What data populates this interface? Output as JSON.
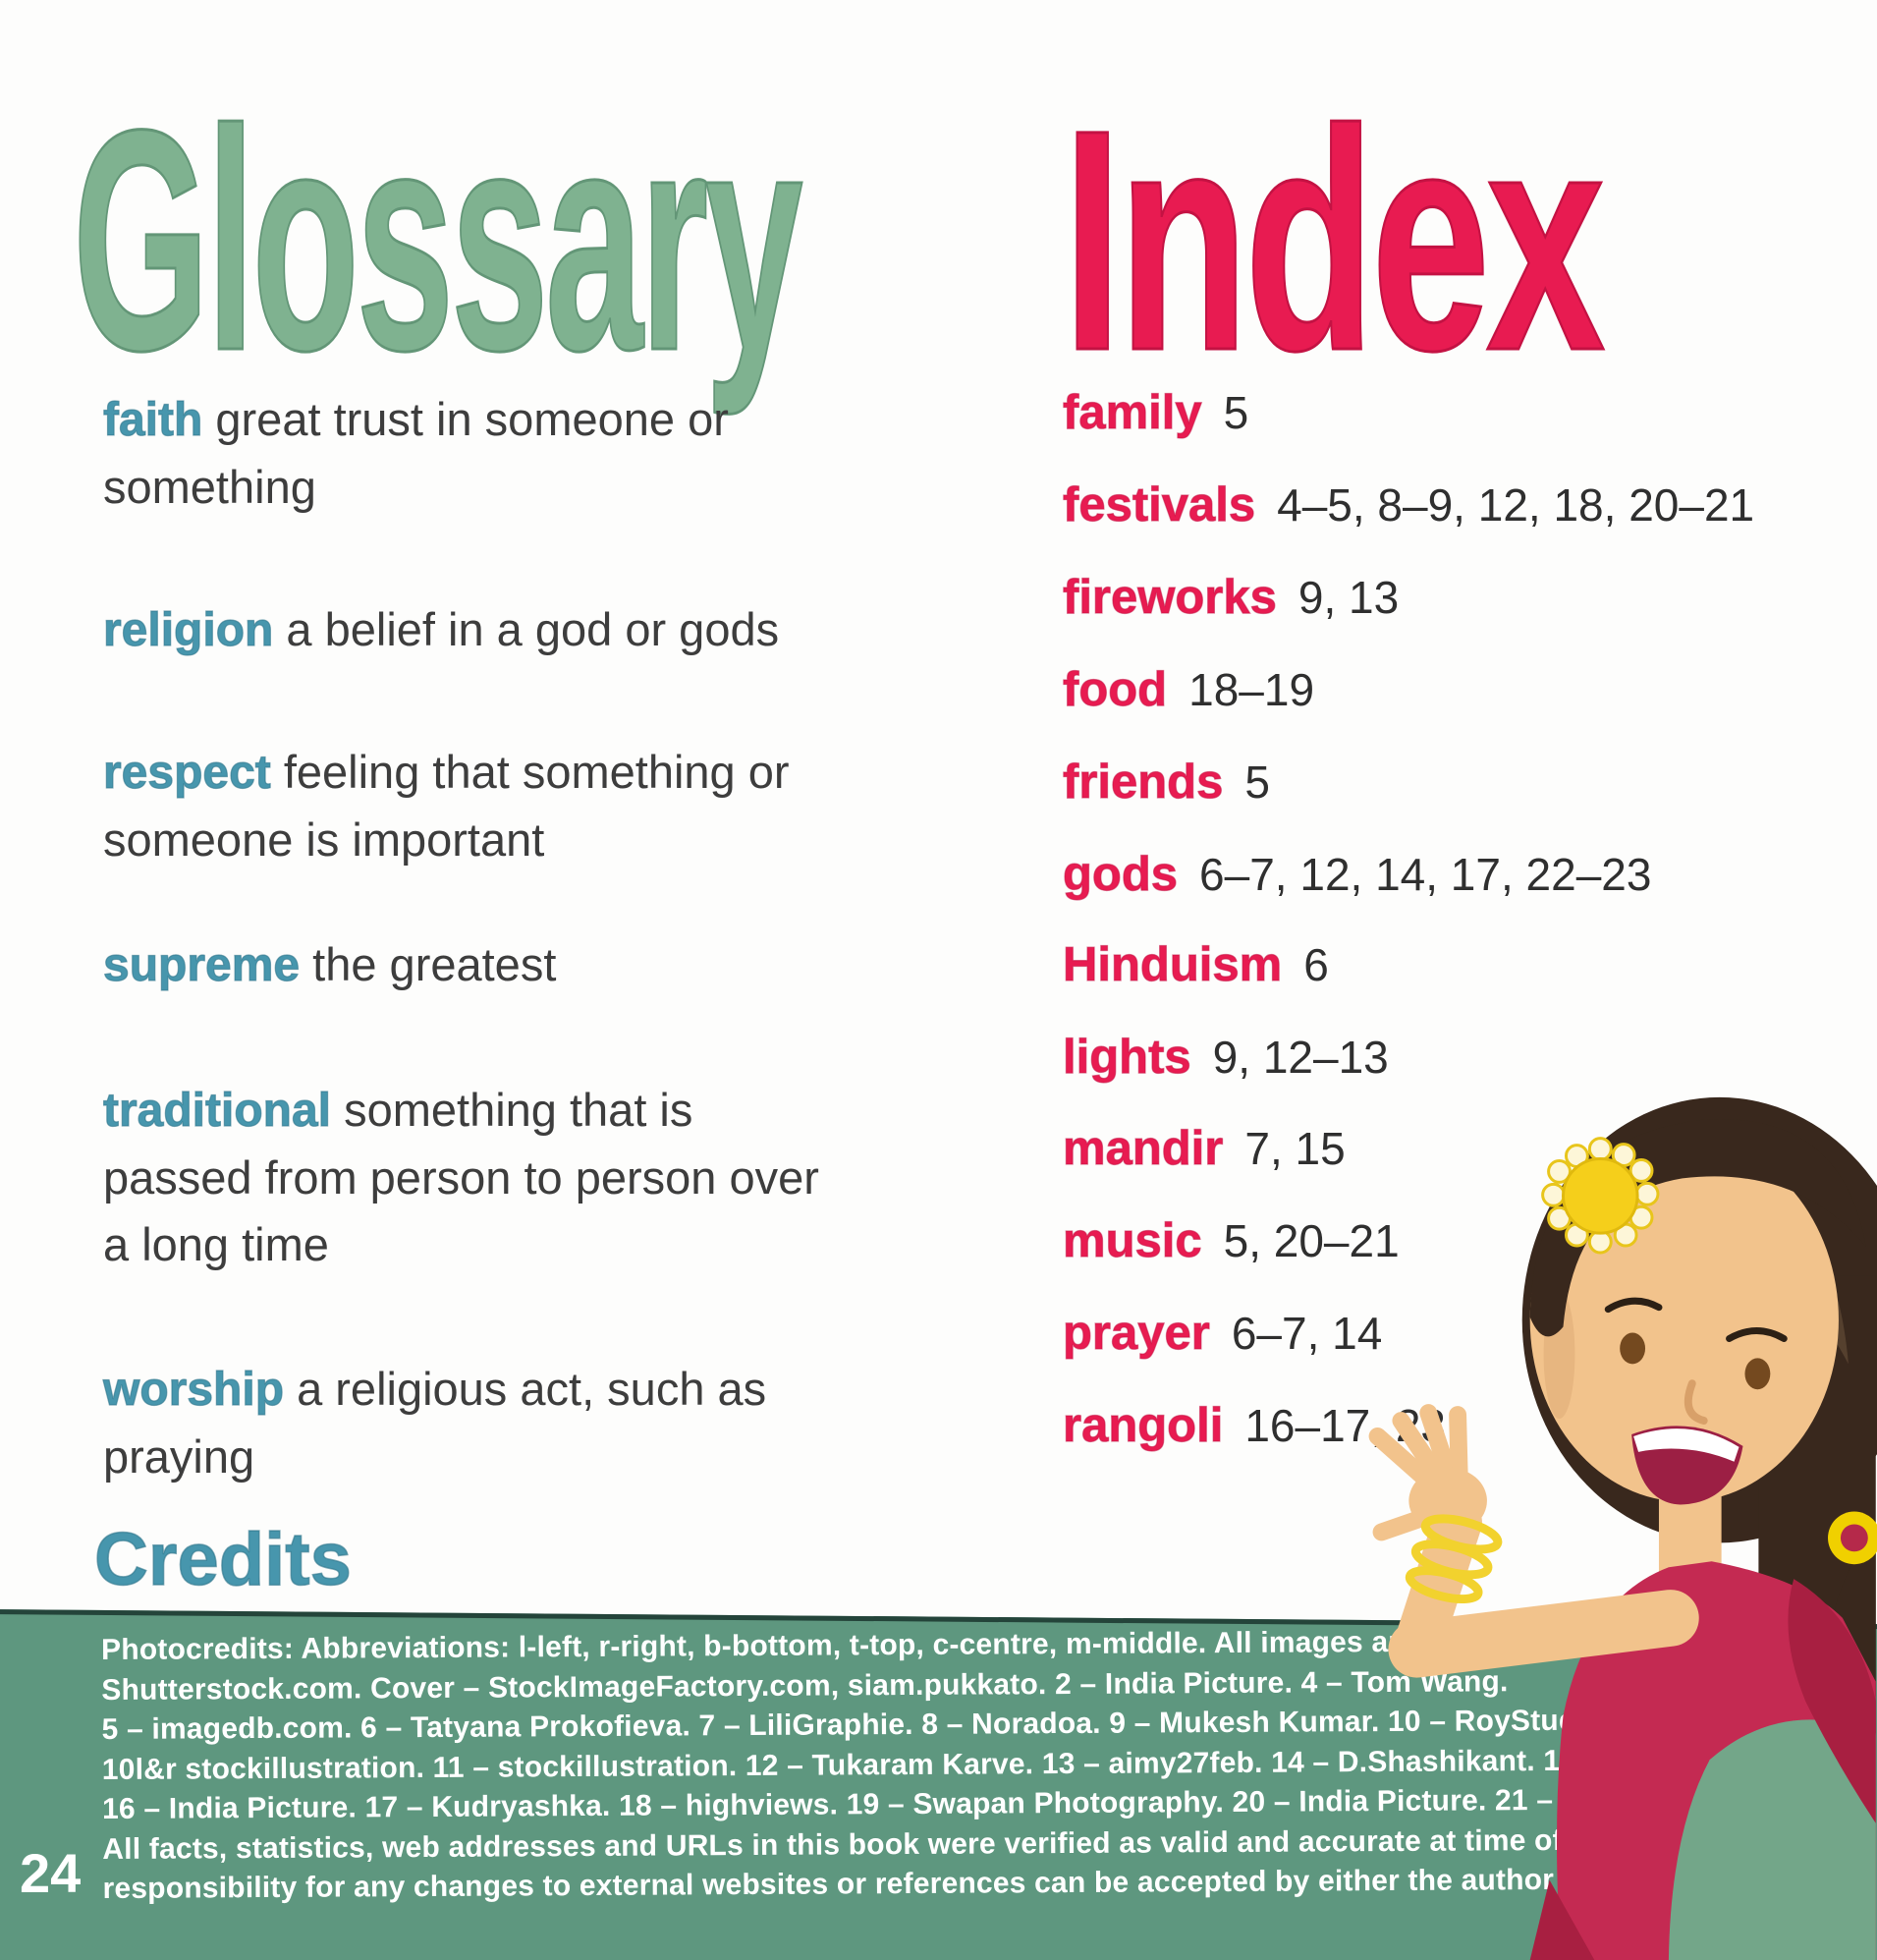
{
  "page": {
    "glossary_title": "Glossary",
    "index_title": "Index",
    "credits_title": "Credits",
    "page_number": "24"
  },
  "glossary": {
    "entries": [
      {
        "term": "faith",
        "definition": "great trust in someone or something"
      },
      {
        "term": "religion",
        "definition": "a belief in a god or gods"
      },
      {
        "term": "respect",
        "definition": "feeling that something or someone is important"
      },
      {
        "term": "supreme",
        "definition": "the greatest"
      },
      {
        "term": "traditional",
        "definition": "something that is passed from person to person over a long time"
      },
      {
        "term": "worship",
        "definition": "a religious act, such as praying"
      }
    ]
  },
  "index": {
    "entries": [
      {
        "term": "family",
        "pages": "5"
      },
      {
        "term": "festivals",
        "pages": "4–5, 8–9, 12, 18, 20–21"
      },
      {
        "term": "fireworks",
        "pages": "9, 13"
      },
      {
        "term": "food",
        "pages": "18–19"
      },
      {
        "term": "friends",
        "pages": "5"
      },
      {
        "term": "gods",
        "pages": "6–7, 12, 14, 17, 22–23"
      },
      {
        "term": "Hinduism",
        "pages": "6"
      },
      {
        "term": "lights",
        "pages": "9, 12–13"
      },
      {
        "term": "mandir",
        "pages": "7, 15"
      },
      {
        "term": "music",
        "pages": "5, 20–21"
      },
      {
        "term": "prayer",
        "pages": "6–7, 14"
      },
      {
        "term": "rangoli",
        "pages": "16–17, 23"
      }
    ]
  },
  "credits": {
    "lines": [
      "Photocredits: Abbreviations: l-left, r-right, b-bottom, t-top, c-centre, m-middle. All images are courtesy of",
      "Shutterstock.com. Cover – StockImageFactory.com, siam.pukkato. 2 – India Picture. 4 – Tom Wang.",
      "5 – imagedb.com. 6 – Tatyana Prokofieva. 7 – LiliGraphie. 8 – Noradoa. 9 – Mukesh Kumar. 10 – RoyStudio.eu.",
      "10l&r stockillustration. 11 – stockillustration. 12 – Tukaram Karve. 13 – aimy27feb. 14 – D.Shashikant. 15 – saiko3p.",
      "16 – India Picture. 17 – Kudryashka. 18 – highviews. 19 – Swapan Photography. 20 – India Picture. 21 – imagedb.com.",
      "All facts, statistics, web addresses and URLs in this book were verified as valid and accurate at time of writing. No",
      "responsibility for any changes to external websites or references can be accepted by either the author or publisher."
    ]
  },
  "colors": {
    "glossary_title_green": "#7fb290",
    "index_title_pink": "#e81b51",
    "glossary_term_teal": "#4796ad",
    "body_text": "#3d3d3d",
    "footer_band_green": "#5e977f",
    "credits_text": "#ffffff"
  },
  "illustration": "waving-girl-cartoon"
}
